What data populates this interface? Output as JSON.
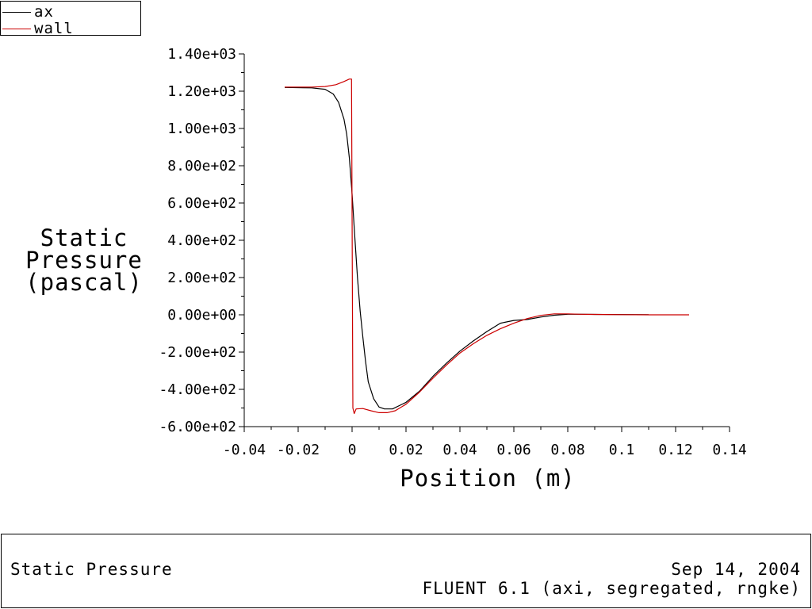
{
  "chart_data": {
    "type": "line",
    "xlabel": "Position (m)",
    "ylabel_lines": [
      "Static",
      "Pressure",
      "(pascal)"
    ],
    "xlim": [
      -0.04,
      0.14
    ],
    "ylim": [
      -600,
      1400
    ],
    "x_ticks": [
      -0.04,
      -0.02,
      0,
      0.02,
      0.04,
      0.06,
      0.08,
      0.1,
      0.12,
      0.14
    ],
    "x_tick_labels": [
      "-0.04",
      "-0.02",
      "0",
      "0.02",
      "0.04",
      "0.06",
      "0.08",
      "0.1",
      "0.12",
      "0.14"
    ],
    "y_ticks": [
      1400,
      1200,
      1000,
      800,
      600,
      400,
      200,
      0,
      -200,
      -400,
      -600
    ],
    "y_tick_labels": [
      "1.40e+03",
      "1.20e+03",
      "1.00e+03",
      "8.00e+02",
      "6.00e+02",
      "4.00e+02",
      "2.00e+02",
      "0.00e+00",
      "-2.00e+02",
      "-4.00e+02",
      "-6.00e+02"
    ],
    "legend": "top-left",
    "series": [
      {
        "name": "ax",
        "color": "#000000",
        "points": [
          [
            -0.025,
            1220
          ],
          [
            -0.015,
            1218
          ],
          [
            -0.01,
            1210
          ],
          [
            -0.007,
            1185
          ],
          [
            -0.005,
            1140
          ],
          [
            -0.003,
            1050
          ],
          [
            -0.002,
            970
          ],
          [
            -0.001,
            840
          ],
          [
            0,
            650
          ],
          [
            0.001,
            420
          ],
          [
            0.002,
            200
          ],
          [
            0.003,
            20
          ],
          [
            0.004,
            -120
          ],
          [
            0.005,
            -250
          ],
          [
            0.006,
            -360
          ],
          [
            0.008,
            -450
          ],
          [
            0.01,
            -495
          ],
          [
            0.012,
            -505
          ],
          [
            0.015,
            -505
          ],
          [
            0.02,
            -470
          ],
          [
            0.025,
            -410
          ],
          [
            0.03,
            -330
          ],
          [
            0.035,
            -260
          ],
          [
            0.04,
            -195
          ],
          [
            0.045,
            -140
          ],
          [
            0.05,
            -90
          ],
          [
            0.055,
            -45
          ],
          [
            0.06,
            -30
          ],
          [
            0.065,
            -25
          ],
          [
            0.07,
            -12
          ],
          [
            0.075,
            -2
          ],
          [
            0.08,
            3
          ],
          [
            0.085,
            3
          ],
          [
            0.09,
            2
          ],
          [
            0.11,
            1
          ]
        ]
      },
      {
        "name": "wall",
        "color": "#cc0000",
        "points": [
          [
            -0.025,
            1222
          ],
          [
            -0.015,
            1222
          ],
          [
            -0.01,
            1225
          ],
          [
            -0.006,
            1235
          ],
          [
            -0.003,
            1252
          ],
          [
            -0.001,
            1265
          ],
          [
            -0.0002,
            1265
          ],
          [
            0.0003,
            -500
          ],
          [
            0.0008,
            -530
          ],
          [
            0.0015,
            -505
          ],
          [
            0.004,
            -503
          ],
          [
            0.007,
            -515
          ],
          [
            0.01,
            -525
          ],
          [
            0.013,
            -525
          ],
          [
            0.016,
            -515
          ],
          [
            0.02,
            -480
          ],
          [
            0.025,
            -415
          ],
          [
            0.03,
            -340
          ],
          [
            0.035,
            -270
          ],
          [
            0.04,
            -205
          ],
          [
            0.045,
            -155
          ],
          [
            0.05,
            -110
          ],
          [
            0.055,
            -75
          ],
          [
            0.06,
            -45
          ],
          [
            0.065,
            -20
          ],
          [
            0.07,
            -3
          ],
          [
            0.075,
            5
          ],
          [
            0.08,
            5
          ],
          [
            0.085,
            3
          ],
          [
            0.09,
            2
          ],
          [
            0.1,
            1
          ],
          [
            0.11,
            0
          ],
          [
            0.125,
            0
          ]
        ]
      }
    ]
  },
  "footer": {
    "title": "Static Pressure",
    "date": "Sep 14, 2004",
    "version": "FLUENT 6.1 (axi, segregated, rngke)"
  }
}
